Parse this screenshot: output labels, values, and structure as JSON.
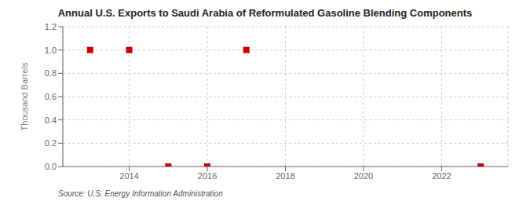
{
  "chart_data": {
    "type": "scatter",
    "title": "Annual U.S. Exports to Saudi Arabia of Reformulated Gasoline Blending Components",
    "ylabel": "Thousand Barrels",
    "annotations": [
      "Source: U.S. Energy Information Administration"
    ],
    "x": [
      2013,
      2014,
      2015,
      2016,
      2017,
      2023
    ],
    "values": [
      1.0,
      1.0,
      0.0,
      0.0,
      1.0,
      0.0
    ],
    "color": "#cc0000",
    "marker": "square",
    "xlim": [
      2012.3,
      2023.7
    ],
    "xticks": [
      2014,
      2016,
      2018,
      2020,
      2022
    ],
    "ylim": [
      0.0,
      1.2
    ],
    "yticks": [
      {
        "value": 0.0,
        "label": "0.0"
      },
      {
        "value": 0.2,
        "label": "0.2"
      },
      {
        "value": 0.4,
        "label": "0.4"
      },
      {
        "value": 0.6,
        "label": "0.6"
      },
      {
        "value": 0.8,
        "label": "0.8"
      },
      {
        "value": 1.0,
        "label": "1.0"
      },
      {
        "value": 1.2,
        "label": "1.2"
      }
    ],
    "grid": true
  }
}
